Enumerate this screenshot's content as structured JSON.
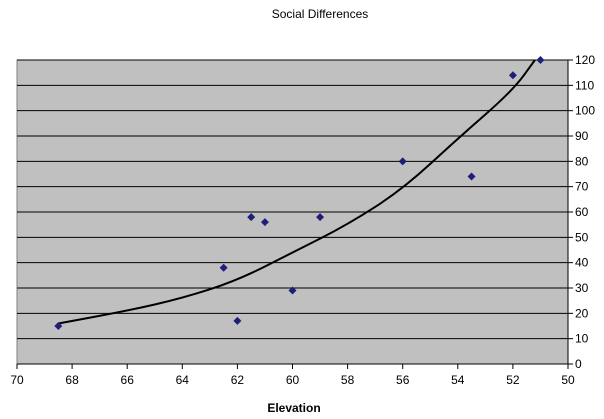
{
  "chart_data": {
    "type": "scatter",
    "title": "Social Differences",
    "xlabel": "Elevation",
    "ylabel": "",
    "xlim": [
      70,
      50
    ],
    "x_reversed": true,
    "ylim": [
      0,
      120
    ],
    "x_ticks": [
      70,
      68,
      66,
      64,
      62,
      60,
      58,
      56,
      54,
      52,
      50
    ],
    "y_ticks": [
      0,
      10,
      20,
      30,
      40,
      50,
      60,
      70,
      80,
      90,
      100,
      110,
      120
    ],
    "y_axis_position": "right",
    "grid": "horizontal",
    "plot_background": "#c0c0c0",
    "marker_color": "#1f1f7a",
    "trend_color": "#000000",
    "legend": "none",
    "series": [
      {
        "points": [
          {
            "x": 68.5,
            "y": 15
          },
          {
            "x": 62.5,
            "y": 38
          },
          {
            "x": 62.0,
            "y": 17
          },
          {
            "x": 61.5,
            "y": 58
          },
          {
            "x": 61.0,
            "y": 56
          },
          {
            "x": 60.0,
            "y": 29
          },
          {
            "x": 59.0,
            "y": 58
          },
          {
            "x": 56.0,
            "y": 80
          },
          {
            "x": 53.5,
            "y": 74
          },
          {
            "x": 52.0,
            "y": 114
          },
          {
            "x": 51.0,
            "y": 120
          }
        ]
      }
    ],
    "trendline": {
      "type": "exponential",
      "points": [
        {
          "x": 68.5,
          "y": 16
        },
        {
          "x": 66,
          "y": 21
        },
        {
          "x": 64,
          "y": 26
        },
        {
          "x": 62,
          "y": 33
        },
        {
          "x": 60,
          "y": 44
        },
        {
          "x": 58,
          "y": 55
        },
        {
          "x": 56,
          "y": 69
        },
        {
          "x": 54,
          "y": 89
        },
        {
          "x": 52,
          "y": 108
        },
        {
          "x": 51.2,
          "y": 120
        }
      ]
    }
  }
}
